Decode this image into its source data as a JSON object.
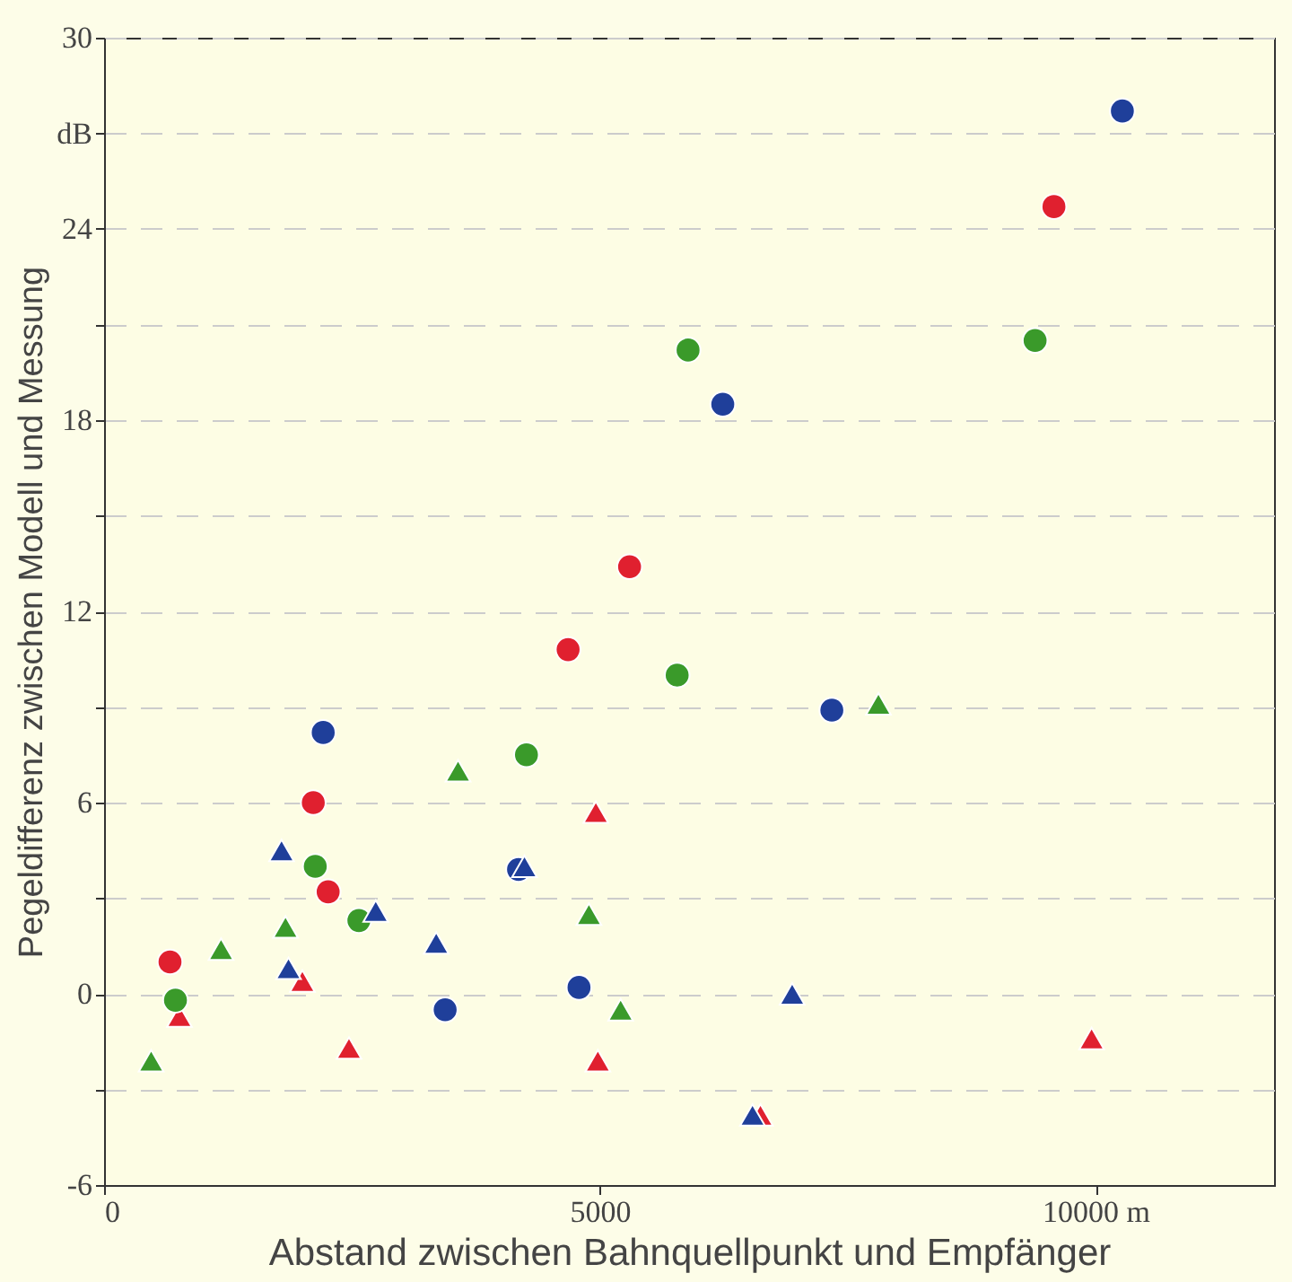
{
  "chart_data": {
    "type": "scatter",
    "xlabel": "Abstand zwischen Bahnquellpunkt und Empfänger",
    "ylabel": "Pegeldifferenz zwischen Modell und Messung",
    "xlim": [
      0,
      11800
    ],
    "xticks": [
      0,
      5000,
      {
        "value": 10000,
        "label": "10000 m"
      }
    ],
    "ylim": [
      -6,
      30
    ],
    "yticks": [
      -6,
      {
        "value": -3,
        "label": null
      },
      0,
      {
        "value": 3,
        "label": null
      },
      6,
      {
        "value": 9,
        "label": null
      },
      12,
      {
        "value": 15,
        "label": null
      },
      18,
      {
        "value": 21,
        "label": null
      },
      24,
      {
        "value": 27,
        "label": "dB"
      },
      30
    ],
    "grid": "y",
    "legend": false,
    "series": [
      {
        "color": "#e0202f",
        "marker": "circle",
        "x": [
          665,
          2110,
          2260,
          4680,
          5300,
          9580
        ],
        "values": [
          1.0,
          6.0,
          3.2,
          10.8,
          13.4,
          24.7
        ]
      },
      {
        "color": "#e0202f",
        "marker": "triangle",
        "x": [
          760,
          2000,
          2470,
          4980,
          4960,
          6620,
          9960
        ],
        "values": [
          -0.7,
          0.4,
          -1.7,
          -2.1,
          5.7,
          -3.8,
          -1.4
        ]
      },
      {
        "color": "#3a9a2a",
        "marker": "circle",
        "x": [
          720,
          2130,
          2570,
          4260,
          5890,
          5780,
          9390
        ],
        "values": [
          -0.2,
          4.0,
          2.3,
          7.5,
          20.2,
          10.0,
          20.5
        ]
      },
      {
        "color": "#3a9a2a",
        "marker": "triangle",
        "x": [
          475,
          1180,
          1830,
          3570,
          4890,
          5210,
          7810
        ],
        "values": [
          -2.1,
          1.4,
          2.1,
          7.0,
          2.5,
          -0.5,
          9.1
        ]
      },
      {
        "color": "#1f3f9a",
        "marker": "circle",
        "x": [
          2210,
          3440,
          4180,
          4790,
          6240,
          7340,
          10270
        ],
        "values": [
          8.2,
          -0.5,
          3.9,
          0.2,
          18.5,
          8.9,
          27.7
        ]
      },
      {
        "color": "#1f3f9a",
        "marker": "triangle",
        "x": [
          1790,
          1860,
          2740,
          3350,
          4240,
          6940,
          6540
        ],
        "values": [
          4.5,
          0.8,
          2.6,
          1.6,
          4.0,
          0.0,
          -3.8
        ]
      }
    ]
  }
}
